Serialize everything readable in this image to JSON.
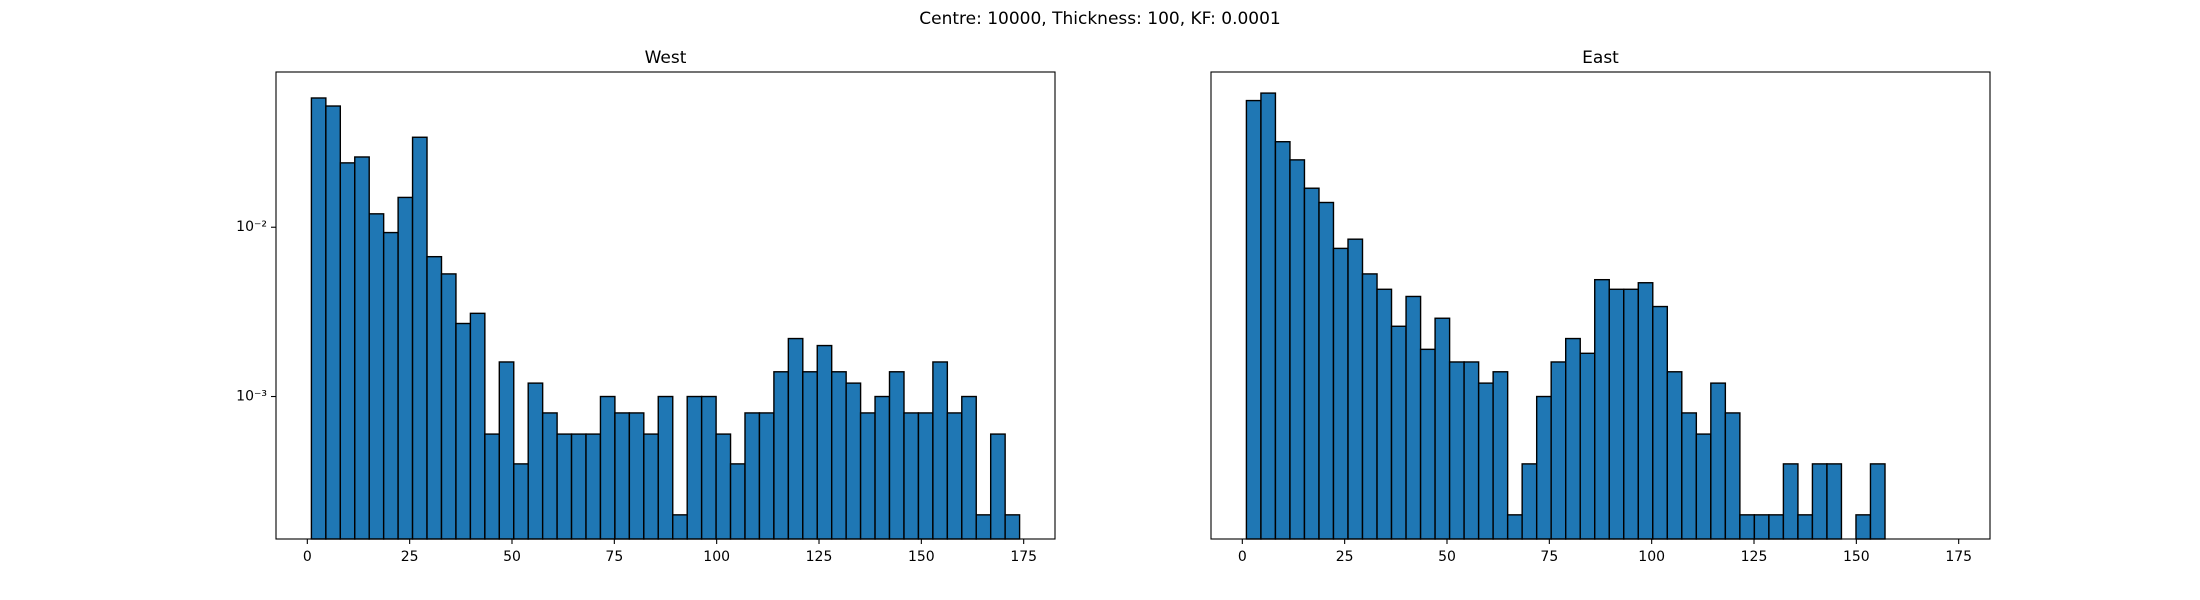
{
  "title": "Centre: 10000, Thickness: 100, KF: 0.0001",
  "chart_data": [
    {
      "type": "histogram",
      "title": "West",
      "color": "#1f77b4",
      "edgecolor": "#000000",
      "log_y": true,
      "bins": [
        1,
        4.53,
        8.06,
        11.59,
        15.12,
        18.65,
        22.18,
        25.71,
        29.24,
        32.78,
        36.31,
        39.84,
        43.37,
        46.9,
        50.43,
        53.96,
        57.49,
        61.02,
        64.55,
        68.08,
        71.61,
        75.14,
        78.67,
        82.2,
        85.73,
        89.27,
        92.8,
        96.33,
        99.86,
        103.39,
        106.92,
        110.45,
        113.98,
        117.51,
        121.04,
        124.57,
        128.1,
        131.63,
        135.16,
        138.69,
        142.22,
        145.76,
        149.29,
        152.82,
        156.35,
        159.88,
        163.41,
        166.94,
        170.47,
        174
      ],
      "values": [
        0.058,
        0.052,
        0.024,
        0.026,
        0.012,
        0.0093,
        0.015,
        0.034,
        0.0067,
        0.0053,
        0.0027,
        0.0031,
        0.0006,
        0.0016,
        0.0004,
        0.0012,
        0.0008,
        0.0006,
        0.0006,
        0.0006,
        0.001,
        0.0008,
        0.0008,
        0.0006,
        0.001,
        0.0002,
        0.001,
        0.001,
        0.0006,
        0.0004,
        0.0008,
        0.0008,
        0.0014,
        0.0022,
        0.0014,
        0.002,
        0.0014,
        0.0012,
        0.0008,
        0.001,
        0.0014,
        0.0008,
        0.0008,
        0.0016,
        0.0008,
        0.001,
        0.0002,
        0.0006,
        0.0002
      ],
      "xlim": [
        -7.65,
        182.65
      ],
      "xticks": [
        0,
        25,
        50,
        75,
        100,
        125,
        150,
        175
      ],
      "ylim": [
        0.000144,
        0.0826
      ],
      "yticks": [
        {
          "value": 0.01,
          "label": "10⁻²"
        },
        {
          "value": 0.001,
          "label": "10⁻³"
        }
      ]
    },
    {
      "type": "histogram",
      "title": "East",
      "color": "#1f77b4",
      "edgecolor": "#000000",
      "log_y": true,
      "bins": [
        1,
        4.55,
        8.09,
        11.64,
        15.18,
        18.73,
        22.27,
        25.82,
        29.36,
        32.91,
        36.45,
        40.0,
        43.55,
        47.09,
        50.64,
        54.18,
        57.73,
        61.27,
        64.82,
        68.36,
        71.91,
        75.45,
        79.0,
        82.55,
        86.09,
        89.64,
        93.18,
        96.73,
        100.27,
        103.82,
        107.36,
        110.91,
        114.45,
        118.0,
        121.55,
        125.09,
        128.64,
        132.18,
        135.73,
        139.27,
        142.82,
        146.36,
        149.91,
        153.45,
        157
      ],
      "values": [
        0.056,
        0.062,
        0.032,
        0.025,
        0.017,
        0.014,
        0.0075,
        0.0085,
        0.0053,
        0.0043,
        0.0026,
        0.0039,
        0.0019,
        0.0029,
        0.0016,
        0.0016,
        0.0012,
        0.0014,
        0.0002,
        0.0004,
        0.001,
        0.0016,
        0.0022,
        0.0018,
        0.0049,
        0.0043,
        0.0043,
        0.0047,
        0.0034,
        0.0014,
        0.0008,
        0.0006,
        0.0012,
        0.0008,
        0.0002,
        0.0002,
        0.0002,
        0.0004,
        0.0002,
        0.0004,
        0.0004,
        0,
        0.0002,
        0.0004
      ],
      "xlim": [
        -7.65,
        182.65
      ],
      "xticks": [
        0,
        25,
        50,
        75,
        100,
        125,
        150,
        175
      ],
      "ylim": [
        0.000144,
        0.0826
      ]
    }
  ]
}
